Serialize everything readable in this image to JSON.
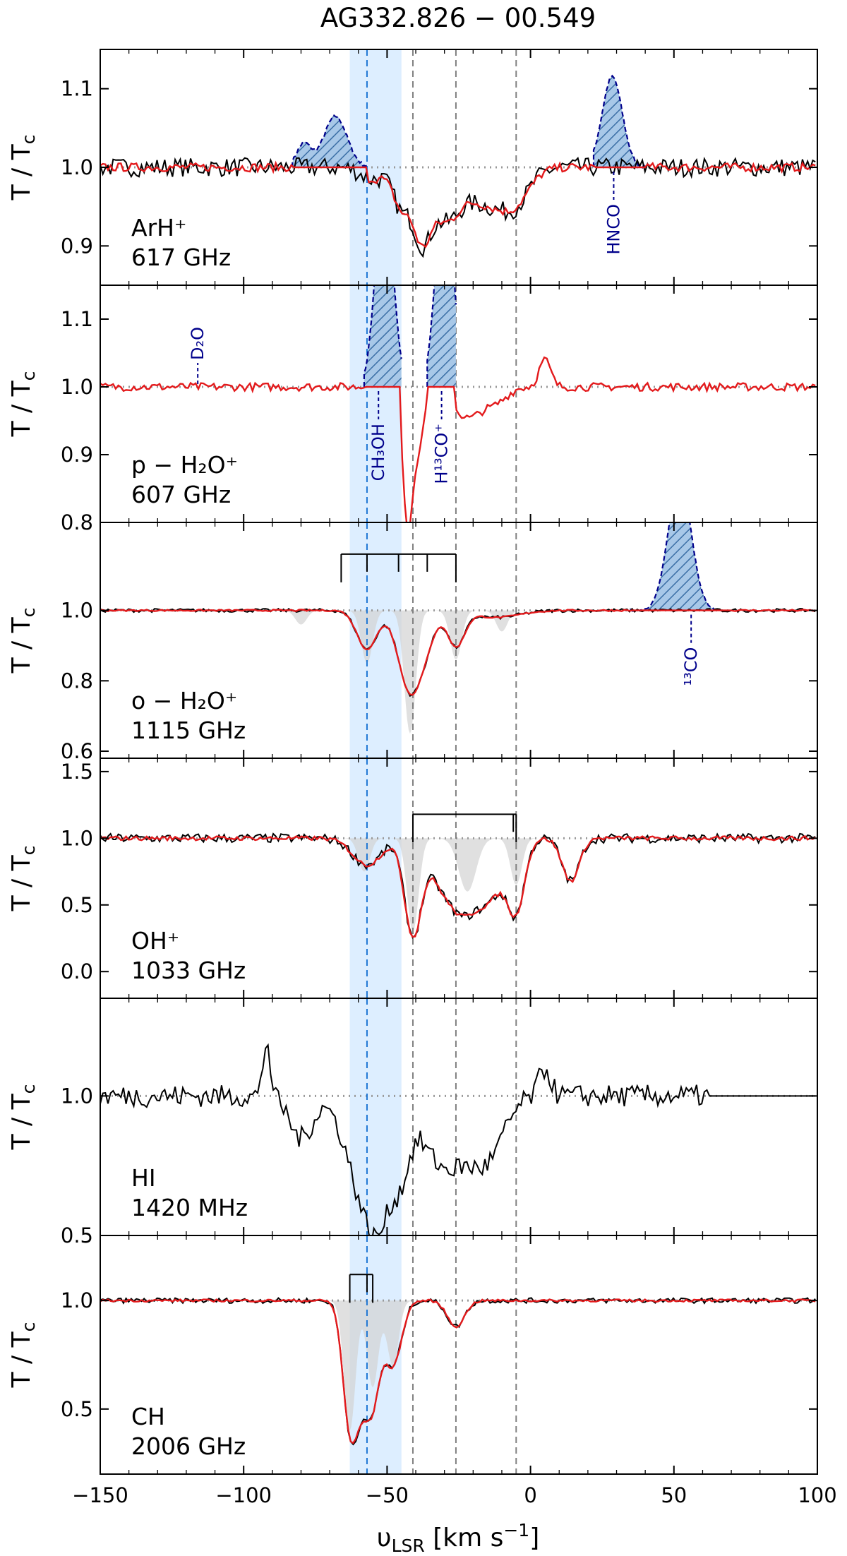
{
  "chart_data": {
    "type": "line",
    "title": "AG332.826 − 00.549",
    "xlabel": "υ_LSR [km s⁻¹]",
    "xlim": [
      -150,
      100
    ],
    "xticks": [
      -150,
      -100,
      -50,
      0,
      50,
      100
    ],
    "ylabel": "T / T_c",
    "reference_lines": {
      "dashed_gray_x": [
        -41,
        -26,
        -5
      ],
      "dashed_blue_x": -57,
      "shaded_band_x": [
        -63,
        -45
      ]
    },
    "panels": [
      {
        "species": "ArH⁺",
        "freq": "617 GHz",
        "ylim": [
          0.85,
          1.15
        ],
        "yticks": [
          0.9,
          1.0,
          1.1
        ],
        "yticklabels": [
          "0.9",
          "1.0",
          "1.1"
        ],
        "hasRed": true,
        "redKind": "close",
        "noise": 0.012,
        "baseline": 1.0,
        "dips": [
          [
            -55,
            4,
            0.015
          ],
          [
            -45,
            3,
            0.05
          ],
          [
            -38,
            3,
            0.08
          ],
          [
            -30,
            5,
            0.06
          ],
          [
            -15,
            8,
            0.045
          ],
          [
            -5,
            5,
            0.03
          ]
        ],
        "spikes": [],
        "hatched": [
          {
            "label": "",
            "peaks": [
              [
                -79,
                2.5,
                0.03
              ],
              [
                -68,
                4,
                0.065
              ]
            ],
            "range": [
              -83,
              -57
            ],
            "labelSide": "none"
          },
          {
            "label": "HNCO",
            "peaks": [
              [
                28.5,
                3.5,
                0.115
              ]
            ],
            "range": [
              22,
              40
            ],
            "labelSide": "below",
            "labelX": 29
          }
        ],
        "brackets": []
      },
      {
        "species": "p − H₂O⁺",
        "freq": "607 GHz",
        "ylim": [
          0.8,
          1.15
        ],
        "yticks": [
          0.8,
          0.9,
          1.0,
          1.1
        ],
        "yticklabels": [
          "0.8",
          "0.9",
          "1.0",
          "1.1"
        ],
        "hasRed": true,
        "redKind": "only",
        "noise": 0.006,
        "baseline": 1.0,
        "dips": [
          [
            -43,
            1.5,
            0.16
          ],
          [
            -40,
            2.5,
            0.1
          ],
          [
            -22,
            5,
            0.045
          ],
          [
            -12,
            4,
            0.02
          ]
        ],
        "spikes": [
          [
            5,
            2,
            0.04
          ]
        ],
        "hatched": [
          {
            "label": "D₂O",
            "peaks": [],
            "range": [
              -116,
              -116
            ],
            "labelSide": "above",
            "labelX": -116
          },
          {
            "label": "CH₃OH",
            "peaks": [
              [
                -51,
                3,
                0.3
              ]
            ],
            "range": [
              -58,
              -45
            ],
            "labelSide": "below",
            "labelX": -53
          },
          {
            "label": "H¹³CO⁺",
            "peaks": [
              [
                -30,
                3,
                0.3
              ]
            ],
            "range": [
              -36,
              -26
            ],
            "labelSide": "below",
            "labelX": -31
          }
        ],
        "brackets": []
      },
      {
        "species": "o − H₂O⁺",
        "freq": "1115 GHz",
        "ylim": [
          0.58,
          1.25
        ],
        "yticks": [
          0.6,
          0.8,
          1.0
        ],
        "yticklabels": [
          "0.6",
          "0.8",
          "1.0"
        ],
        "hasRed": true,
        "redKind": "close",
        "noise": 0.005,
        "baseline": 1.0,
        "dips": [
          [
            -57,
            3.5,
            0.11
          ],
          [
            -42,
            4,
            0.23
          ],
          [
            -36,
            3,
            0.06
          ],
          [
            -26,
            3,
            0.1
          ],
          [
            -12,
            8,
            0.02
          ]
        ],
        "grayDips": [
          [
            -80,
            2,
            0.04
          ],
          [
            -57,
            2,
            0.15
          ],
          [
            -42,
            2,
            0.35
          ],
          [
            -26,
            2,
            0.14
          ],
          [
            -10,
            2,
            0.06
          ]
        ],
        "spikes": [],
        "hatched": [
          {
            "label": "¹³CO",
            "peaks": [
              [
                52,
                4,
                0.37
              ]
            ],
            "range": [
              35,
              68
            ],
            "labelSide": "below",
            "labelX": 56
          }
        ],
        "brackets": [
          {
            "lines": [
              -66,
              -57,
              -46,
              -36,
              -26
            ],
            "y": 1.16
          }
        ]
      },
      {
        "species": "OH⁺",
        "freq": "1033 GHz",
        "ylim": [
          -0.2,
          1.6
        ],
        "yticks": [
          0.0,
          0.5,
          1.0,
          1.5
        ],
        "yticklabels": [
          "0.0",
          "0.5",
          "1.0",
          "1.5"
        ],
        "hasRed": true,
        "redKind": "close",
        "noise": 0.035,
        "baseline": 1.0,
        "dips": [
          [
            -57,
            5,
            0.2
          ],
          [
            -41,
            3,
            0.72
          ],
          [
            -32,
            4,
            0.22
          ],
          [
            -24,
            5,
            0.5
          ],
          [
            -14,
            5,
            0.4
          ],
          [
            -5,
            3,
            0.5
          ],
          [
            14,
            3,
            0.32
          ]
        ],
        "grayDips": [
          [
            -58,
            2,
            0.25
          ],
          [
            -41,
            2,
            0.7
          ],
          [
            -22,
            3,
            0.4
          ],
          [
            -5,
            2,
            0.35
          ]
        ],
        "spikes": [],
        "hatched": [],
        "brackets": [
          {
            "lines": [
              -41,
              -6,
              -5
            ],
            "y": 1.18
          }
        ]
      },
      {
        "species": "HI",
        "freq": "1420 MHz",
        "ylim": [
          0.5,
          1.35
        ],
        "yticks": [
          0.5,
          1.0
        ],
        "yticklabels": [
          "0.5",
          "1.0"
        ],
        "hasRed": false,
        "noise": 0.04,
        "baseline": 1.0,
        "dips": [
          [
            -80,
            4,
            0.15
          ],
          [
            -58,
            6,
            0.35
          ],
          [
            -52,
            4,
            0.25
          ],
          [
            -45,
            3,
            0.2
          ],
          [
            -30,
            8,
            0.25
          ],
          [
            -15,
            6,
            0.2
          ]
        ],
        "spikes": [
          [
            -92,
            1.2,
            0.2
          ],
          [
            5,
            2,
            0.1
          ]
        ],
        "flatFrom": 62,
        "hatched": [],
        "brackets": []
      },
      {
        "species": "CH",
        "freq": "2006 GHz",
        "ylim": [
          0.2,
          1.3
        ],
        "yticks": [
          0.5,
          1.0
        ],
        "yticklabels": [
          "0.5",
          "1.0"
        ],
        "hasRed": true,
        "redKind": "close",
        "noise": 0.012,
        "baseline": 1.0,
        "dips": [
          [
            -63,
            2.5,
            0.55
          ],
          [
            -59,
            2.5,
            0.3
          ],
          [
            -55,
            2.5,
            0.42
          ],
          [
            -48,
            3,
            0.3
          ],
          [
            -26,
            3,
            0.12
          ]
        ],
        "grayDips": [
          [
            -63,
            2,
            0.6
          ],
          [
            -55,
            2,
            0.4
          ],
          [
            -48,
            2,
            0.3
          ]
        ],
        "spikes": [],
        "hatched": [],
        "brackets": [
          {
            "lines": [
              -63,
              -57,
              -55
            ],
            "y": 1.12
          }
        ]
      }
    ]
  }
}
